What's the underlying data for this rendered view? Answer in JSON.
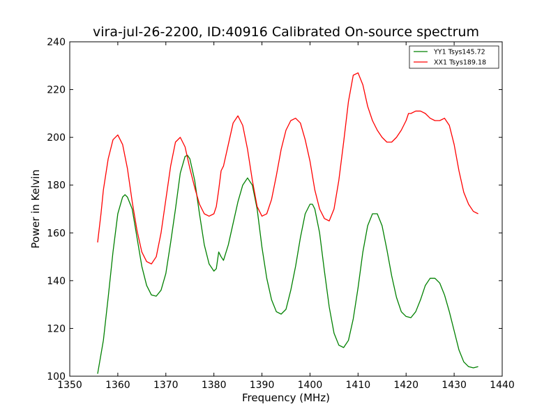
{
  "chart_data": {
    "type": "line",
    "title": "vira-jul-26-2200, ID:40916 Calibrated On-source spectrum",
    "xlabel": "Frequency (MHz)",
    "ylabel": "Power in Kelvin",
    "xlim": [
      1350,
      1440
    ],
    "ylim": [
      100,
      240
    ],
    "xticks": [
      1350,
      1360,
      1370,
      1380,
      1390,
      1400,
      1410,
      1420,
      1430,
      1440
    ],
    "yticks": [
      100,
      120,
      140,
      160,
      180,
      200,
      220,
      240
    ],
    "grid": false,
    "legend_position": "top-right",
    "series": [
      {
        "name": "YY1 Tsys145.72",
        "color": "#008000",
        "points": [
          [
            1355.8,
            101
          ],
          [
            1357,
            115
          ],
          [
            1358,
            133
          ],
          [
            1359,
            152
          ],
          [
            1360,
            168
          ],
          [
            1361,
            175
          ],
          [
            1361.5,
            176
          ],
          [
            1362,
            175
          ],
          [
            1363,
            170
          ],
          [
            1364,
            158
          ],
          [
            1365,
            146
          ],
          [
            1366,
            138
          ],
          [
            1367,
            134
          ],
          [
            1368,
            133.5
          ],
          [
            1369,
            136
          ],
          [
            1370,
            143
          ],
          [
            1371,
            156
          ],
          [
            1372,
            170
          ],
          [
            1373,
            185
          ],
          [
            1374,
            192
          ],
          [
            1374.5,
            192.5
          ],
          [
            1375,
            191
          ],
          [
            1376,
            182
          ],
          [
            1377,
            168
          ],
          [
            1378,
            155
          ],
          [
            1379,
            147
          ],
          [
            1380,
            144
          ],
          [
            1380.5,
            145
          ],
          [
            1381,
            152
          ],
          [
            1381.5,
            150
          ],
          [
            1382,
            148.5
          ],
          [
            1383,
            155
          ],
          [
            1384,
            164
          ],
          [
            1385,
            173
          ],
          [
            1386,
            180
          ],
          [
            1387,
            183
          ],
          [
            1388,
            180
          ],
          [
            1389,
            170
          ],
          [
            1390,
            154
          ],
          [
            1391,
            141
          ],
          [
            1392,
            132
          ],
          [
            1393,
            127
          ],
          [
            1394,
            126
          ],
          [
            1395,
            128
          ],
          [
            1396,
            136
          ],
          [
            1397,
            146
          ],
          [
            1398,
            158
          ],
          [
            1399,
            168
          ],
          [
            1400,
            172
          ],
          [
            1400.5,
            172
          ],
          [
            1401,
            170
          ],
          [
            1402,
            160
          ],
          [
            1403,
            144
          ],
          [
            1404,
            129
          ],
          [
            1405,
            118
          ],
          [
            1406,
            113
          ],
          [
            1407,
            112
          ],
          [
            1408,
            115
          ],
          [
            1409,
            124
          ],
          [
            1410,
            137
          ],
          [
            1411,
            152
          ],
          [
            1412,
            163
          ],
          [
            1413,
            168
          ],
          [
            1414,
            168
          ],
          [
            1415,
            163
          ],
          [
            1416,
            153
          ],
          [
            1417,
            142
          ],
          [
            1418,
            133
          ],
          [
            1419,
            127
          ],
          [
            1420,
            125
          ],
          [
            1421,
            124.5
          ],
          [
            1422,
            127
          ],
          [
            1423,
            132
          ],
          [
            1424,
            138
          ],
          [
            1425,
            141
          ],
          [
            1426,
            141
          ],
          [
            1427,
            139
          ],
          [
            1428,
            134
          ],
          [
            1429,
            127
          ],
          [
            1430,
            119
          ],
          [
            1431,
            111
          ],
          [
            1432,
            106
          ],
          [
            1433,
            104
          ],
          [
            1434,
            103.5
          ],
          [
            1435,
            104
          ]
        ]
      },
      {
        "name": "XX1 Tsys189.18",
        "color": "#ff0000",
        "points": [
          [
            1355.8,
            156
          ],
          [
            1356.5,
            168
          ],
          [
            1357,
            178
          ],
          [
            1358,
            191
          ],
          [
            1359,
            199
          ],
          [
            1360,
            201
          ],
          [
            1361,
            197
          ],
          [
            1362,
            187
          ],
          [
            1363,
            173
          ],
          [
            1364,
            161
          ],
          [
            1365,
            152
          ],
          [
            1366,
            148
          ],
          [
            1367,
            147
          ],
          [
            1368,
            150
          ],
          [
            1369,
            160
          ],
          [
            1370,
            174
          ],
          [
            1371,
            188
          ],
          [
            1372,
            198
          ],
          [
            1373,
            200
          ],
          [
            1374,
            196
          ],
          [
            1375,
            187
          ],
          [
            1376,
            179
          ],
          [
            1377,
            172
          ],
          [
            1378,
            168
          ],
          [
            1379,
            167
          ],
          [
            1380,
            168
          ],
          [
            1380.5,
            171
          ],
          [
            1381,
            178
          ],
          [
            1381.5,
            186
          ],
          [
            1382,
            188
          ],
          [
            1383,
            197
          ],
          [
            1384,
            206
          ],
          [
            1385,
            209
          ],
          [
            1386,
            205
          ],
          [
            1387,
            195
          ],
          [
            1388,
            182
          ],
          [
            1389,
            171
          ],
          [
            1390,
            167
          ],
          [
            1391,
            168
          ],
          [
            1392,
            174
          ],
          [
            1393,
            184
          ],
          [
            1394,
            195
          ],
          [
            1395,
            203
          ],
          [
            1396,
            207
          ],
          [
            1397,
            208
          ],
          [
            1398,
            206
          ],
          [
            1399,
            199
          ],
          [
            1400,
            190
          ],
          [
            1401,
            178
          ],
          [
            1402,
            170
          ],
          [
            1403,
            166
          ],
          [
            1404,
            165
          ],
          [
            1405,
            170
          ],
          [
            1406,
            182
          ],
          [
            1407,
            198
          ],
          [
            1408,
            215
          ],
          [
            1409,
            226
          ],
          [
            1410,
            227
          ],
          [
            1411,
            222
          ],
          [
            1412,
            213
          ],
          [
            1413,
            207
          ],
          [
            1414,
            203
          ],
          [
            1415,
            200
          ],
          [
            1416,
            198
          ],
          [
            1417,
            198
          ],
          [
            1418,
            200
          ],
          [
            1419,
            203
          ],
          [
            1420,
            207
          ],
          [
            1420.5,
            210
          ],
          [
            1421,
            210
          ],
          [
            1422,
            211
          ],
          [
            1423,
            211
          ],
          [
            1424,
            210
          ],
          [
            1425,
            208
          ],
          [
            1426,
            207
          ],
          [
            1427,
            207
          ],
          [
            1428,
            208
          ],
          [
            1429,
            205
          ],
          [
            1430,
            197
          ],
          [
            1431,
            186
          ],
          [
            1432,
            177
          ],
          [
            1433,
            172
          ],
          [
            1434,
            169
          ],
          [
            1435,
            168
          ]
        ]
      }
    ]
  }
}
